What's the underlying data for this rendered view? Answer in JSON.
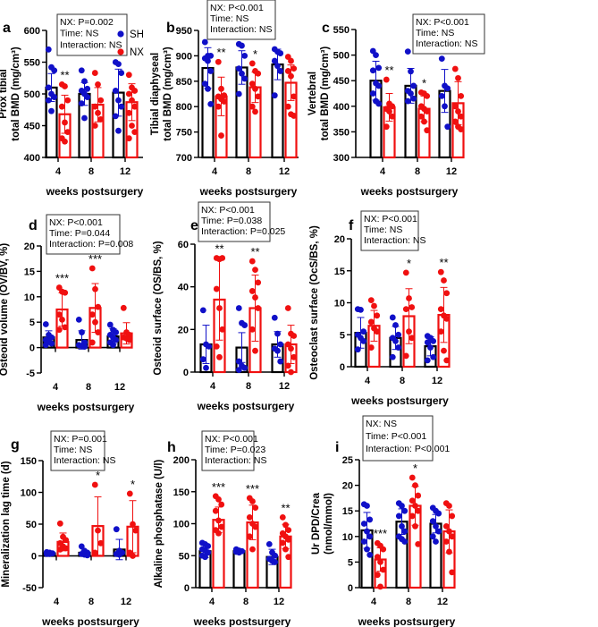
{
  "colors": {
    "SH": "#1010c8",
    "NX": "#f01010",
    "SH_bar_outline": "#000000",
    "NX_bar_outline": "#f01010"
  },
  "legend": [
    {
      "label": "SH",
      "color": "#1010c8"
    },
    {
      "label": "NX",
      "color": "#f01010"
    }
  ],
  "chart_data": [
    {
      "type": "bar",
      "letter": "a",
      "ylabel": [
        "Prox tibial",
        "total BMD (mg/cm³)"
      ],
      "xlabel": "weeks postsurgery",
      "categories": [
        "4",
        "8",
        "12"
      ],
      "ylim": [
        400,
        600
      ],
      "yticks": [
        400,
        450,
        500,
        550,
        600
      ],
      "stats": [
        "NX: P=0.002",
        "Time: NS",
        "Interaction: NS"
      ],
      "series": [
        {
          "name": "SH",
          "mean": [
            510,
            500,
            502
          ],
          "sd": [
            22,
            18,
            37
          ],
          "points": [
            [
              570,
              542,
              537,
              510,
              500,
              495,
              490,
              473
            ],
            [
              537,
              520,
              508,
              505,
              500,
              495,
              485,
              462
            ],
            [
              550,
              547,
              533,
              505,
              490,
              480,
              465,
              442
            ]
          ]
        },
        {
          "name": "NX",
          "mean": [
            468,
            483,
            487
          ],
          "sd": [
            30,
            27,
            29
          ],
          "points": [
            [
              515,
              512,
              490,
              480,
              455,
              440,
              430,
              425
            ],
            [
              533,
              515,
              490,
              480,
              470,
              460,
              450
            ],
            [
              530,
              510,
              505,
              500,
              490,
              480,
              470,
              450,
              440,
              430
            ]
          ]
        }
      ],
      "significance": [
        "**",
        "",
        ""
      ]
    },
    {
      "type": "bar",
      "letter": "b",
      "ylabel": [
        "Tibial diaphyseal",
        "total BMD (mg/cm³)"
      ],
      "xlabel": "weeks postsurgery",
      "categories": [
        "4",
        "8",
        "12"
      ],
      "ylim": [
        700,
        950
      ],
      "yticks": [
        700,
        750,
        800,
        850,
        900,
        950
      ],
      "stats": [
        "NX: P<0.001",
        "Time: NS",
        "Interaction: NS"
      ],
      "series": [
        {
          "name": "SH",
          "mean": [
            876,
            877,
            883
          ],
          "sd": [
            40,
            33,
            30
          ],
          "points": [
            [
              927,
              900,
              900,
              895,
              890,
              870,
              845,
              835,
              805
            ],
            [
              923,
              920,
              900,
              875,
              865,
              855,
              825
            ],
            [
              913,
              908,
              905,
              890,
              880,
              870,
              822
            ]
          ]
        },
        {
          "name": "NX",
          "mean": [
            820,
            838,
            847
          ],
          "sd": [
            38,
            30,
            35
          ],
          "points": [
            [
              888,
              835,
              822,
              820,
              815,
              810,
              800,
              743
            ],
            [
              885,
              870,
              865,
              845,
              835,
              820,
              800,
              790
            ],
            [
              898,
              890,
              875,
              870,
              860,
              820,
              800,
              785,
              782
            ]
          ]
        }
      ],
      "significance": [
        "**",
        "*",
        ""
      ]
    },
    {
      "type": "bar",
      "letter": "c",
      "ylabel": [
        "Vertebral",
        "total BMD (mg/cm³)"
      ],
      "xlabel": "weeks postsurgery",
      "categories": [
        "4",
        "8",
        "12"
      ],
      "ylim": [
        300,
        550
      ],
      "yticks": [
        300,
        350,
        400,
        450,
        500,
        550
      ],
      "stats": [
        "NX: P<0.001",
        "Time: NS",
        "Interaction: NS"
      ],
      "series": [
        {
          "name": "SH",
          "mean": [
            450,
            440,
            430
          ],
          "sd": [
            38,
            34,
            42
          ],
          "points": [
            [
              508,
              500,
              475,
              470,
              445,
              440,
              425,
              410,
              405
            ],
            [
              507,
              468,
              440,
              430,
              425,
              415,
              410
            ],
            [
              493,
              440,
              435,
              420,
              400,
              360
            ]
          ]
        },
        {
          "name": "NX",
          "mean": [
            398,
            395,
            406
          ],
          "sd": [
            27,
            25,
            42
          ],
          "points": [
            [
              452,
              405,
              400,
              395,
              390,
              380,
              360
            ],
            [
              427,
              425,
              420,
              400,
              395,
              390,
              380,
              370,
              353
            ],
            [
              473,
              455,
              420,
              400,
              390,
              380,
              370,
              360,
              355
            ]
          ]
        }
      ],
      "significance": [
        "**",
        "*",
        ""
      ]
    },
    {
      "type": "bar",
      "letter": "d",
      "ylabel": [
        "Osteoid volume (OV/BV, %)"
      ],
      "xlabel": "weeks postsurgery",
      "categories": [
        "4",
        "8",
        "12"
      ],
      "ylim": [
        -5,
        20
      ],
      "yticks": [
        -5,
        0,
        5,
        10,
        15,
        20
      ],
      "stats": [
        "NX: P<0.001",
        "Time: P=0.044",
        "Interaction: P=0.008"
      ],
      "series": [
        {
          "name": "SH",
          "mean": [
            2,
            1.5,
            2.2
          ],
          "sd": [
            1.3,
            1.8,
            1.5
          ],
          "points": [
            [
              4.6,
              2.5,
              2,
              1.5,
              1.2,
              0.8,
              0.5
            ],
            [
              5.5,
              3,
              1,
              0.5,
              0.3,
              0.2
            ],
            [
              4.5,
              3.5,
              3,
              2.5,
              2,
              1.5,
              1,
              0.5
            ]
          ]
        },
        {
          "name": "NX",
          "mean": [
            7.5,
            7.8,
            2.8
          ],
          "sd": [
            3.3,
            4.8,
            2.1
          ],
          "points": [
            [
              11.8,
              11,
              10.8,
              6.5,
              5.5,
              4,
              3.5
            ],
            [
              15.6,
              11.5,
              8,
              6.5,
              5,
              3,
              1
            ],
            [
              7.8,
              3,
              2.5,
              2,
              1.8,
              1.5
            ]
          ]
        }
      ],
      "significance": [
        "***",
        "***",
        ""
      ]
    },
    {
      "type": "bar",
      "letter": "e",
      "ylabel": [
        "Osteoid surface (OS/BS, %)"
      ],
      "xlabel": "weeks postsurgery",
      "categories": [
        "4",
        "8",
        "12"
      ],
      "ylim": [
        0,
        60
      ],
      "yticks": [
        0,
        20,
        40,
        60
      ],
      "stats": [
        "NX: P<0.001",
        "Time: P=0.038",
        "Interaction: P=0.025"
      ],
      "series": [
        {
          "name": "SH",
          "mean": [
            13,
            11.5,
            13
          ],
          "sd": [
            9,
            7,
            6
          ],
          "points": [
            [
              29,
              13,
              12,
              6,
              2
            ],
            [
              30,
              23,
              22,
              5,
              3,
              2,
              1
            ],
            [
              25.5,
              18,
              13,
              11,
              10,
              5
            ]
          ]
        },
        {
          "name": "NX",
          "mean": [
            34,
            30,
            13
          ],
          "sd": [
            19,
            15.5,
            9
          ],
          "points": [
            [
              53.5,
              53,
              53.5,
              39,
              30,
              20,
              12,
              7
            ],
            [
              52,
              48,
              42,
              38,
              35,
              30,
              20,
              10
            ],
            [
              30,
              18,
              17,
              13,
              11,
              7,
              3,
              0
            ]
          ]
        }
      ],
      "significance": [
        "**",
        "**",
        ""
      ]
    },
    {
      "type": "bar",
      "letter": "f",
      "ylabel": [
        "Osteoclast surface (OcS/BS, %)"
      ],
      "xlabel": "weeks postsurgery",
      "categories": [
        "4",
        "8",
        "12"
      ],
      "ylim": [
        0,
        20
      ],
      "yticks": [
        0,
        5,
        10,
        15,
        20
      ],
      "stats": [
        "NX: P<0.001",
        "Time: NS",
        "Interaction: NS"
      ],
      "series": [
        {
          "name": "SH",
          "mean": [
            5.3,
            4.5,
            3.2
          ],
          "sd": [
            2.4,
            1.8,
            1.5
          ],
          "points": [
            [
              9,
              8.9,
              5.5,
              5,
              4.5,
              4,
              2.7
            ],
            [
              7.7,
              6.5,
              5,
              4.5,
              4,
              3,
              1.5
            ],
            [
              4.8,
              4.5,
              4,
              3.8,
              3,
              1.5,
              1
            ]
          ]
        },
        {
          "name": "NX",
          "mean": [
            6.4,
            7.9,
            8.1
          ],
          "sd": [
            2.4,
            4.3,
            4.3
          ],
          "points": [
            [
              10.4,
              9.5,
              8,
              7,
              6,
              5.5,
              3
            ],
            [
              14.7,
              10.7,
              9.3,
              9,
              5.5,
              4.5,
              1.7
            ],
            [
              14.8,
              13.5,
              11.5,
              9,
              8,
              7.5,
              5.5,
              2.5,
              1
            ]
          ]
        }
      ],
      "significance": [
        "",
        "*",
        "**"
      ]
    },
    {
      "type": "bar",
      "letter": "g",
      "ylabel": [
        "Mineralization lag time (d)"
      ],
      "xlabel": "weeks postsurgery",
      "categories": [
        "4",
        "8",
        "12"
      ],
      "ylim": [
        -50,
        150
      ],
      "yticks": [
        -50,
        0,
        50,
        100,
        150
      ],
      "stats": [
        "NX: P=0.001",
        "Time: NS",
        "Interaction: NS"
      ],
      "series": [
        {
          "name": "SH",
          "mean": [
            4,
            5,
            10
          ],
          "sd": [
            2,
            4,
            16
          ],
          "points": [
            [
              6,
              5,
              4,
              3,
              3
            ],
            [
              15,
              8,
              5,
              3,
              2,
              1
            ],
            [
              42,
              8,
              5,
              3,
              2
            ]
          ]
        },
        {
          "name": "NX",
          "mean": [
            22,
            47,
            46
          ],
          "sd": [
            14,
            46,
            41
          ],
          "points": [
            [
              51,
              30,
              25,
              20,
              15,
              12,
              10
            ],
            [
              112,
              40,
              20,
              5
            ],
            [
              98,
              50,
              40,
              5,
              0
            ]
          ]
        }
      ],
      "significance": [
        "",
        "*",
        "*"
      ]
    },
    {
      "type": "bar",
      "letter": "h",
      "ylabel": [
        "Alkaline phosphatase (U/l)"
      ],
      "xlabel": "weeks postsurgery",
      "categories": [
        "4",
        "8",
        "12"
      ],
      "ylim": [
        0,
        200
      ],
      "yticks": [
        0,
        50,
        100,
        150,
        200
      ],
      "stats": [
        "NX: P<0.001",
        "Time: P=0.023",
        "Interaction: NS"
      ],
      "series": [
        {
          "name": "SH",
          "mean": [
            57,
            57,
            48
          ],
          "sd": [
            10,
            2,
            12
          ],
          "points": [
            [
              70,
              68,
              65,
              60,
              58,
              55,
              50,
              48
            ],
            [
              60,
              58,
              57,
              56,
              55
            ],
            [
              68,
              55,
              50,
              45,
              42,
              40
            ]
          ]
        },
        {
          "name": "NX",
          "mean": [
            106,
            102,
            80
          ],
          "sd": [
            20,
            27,
            19
          ],
          "points": [
            [
              143,
              138,
              130,
              120,
              105,
              95,
              90,
              85
            ],
            [
              140,
              135,
              125,
              110,
              100,
              95,
              80,
              60
            ],
            [
              110,
              98,
              90,
              85,
              80,
              75,
              70,
              60,
              48
            ]
          ]
        }
      ],
      "significance": [
        "***",
        "***",
        "**"
      ]
    },
    {
      "type": "bar",
      "letter": "i",
      "ylabel": [
        "Ur DPD/Crea",
        "(nmol/mmol)"
      ],
      "xlabel": "weeks postsurgery",
      "categories": [
        "4",
        "8",
        "12"
      ],
      "ylim": [
        0,
        25
      ],
      "yticks": [
        0,
        5,
        10,
        15,
        20,
        25
      ],
      "stats": [
        "NX: NS",
        "Time: P<0.001",
        "Interaction: P<0.001"
      ],
      "series": [
        {
          "name": "SH",
          "mean": [
            11.2,
            12.9,
            12.5
          ],
          "sd": [
            3.5,
            2.5,
            1.8
          ],
          "points": [
            [
              16.3,
              16,
              13.3,
              12.5,
              11,
              10,
              9,
              7.5,
              6.4
            ],
            [
              16.5,
              16,
              15,
              14,
              12,
              11,
              10,
              9.5,
              9
            ],
            [
              15.6,
              15,
              14.5,
              13,
              12,
              11,
              10,
              9
            ]
          ]
        },
        {
          "name": "NX",
          "mean": [
            5.5,
            16,
            11
          ],
          "sd": [
            2.3,
            3.8,
            4.2
          ],
          "points": [
            [
              8.7,
              8.2,
              7.5,
              6,
              5,
              3.5,
              2.5,
              0.2
            ],
            [
              21.5,
              20,
              18,
              17,
              16,
              15,
              14,
              12,
              8.5
            ],
            [
              16.5,
              16,
              14,
              12,
              11,
              10,
              9,
              7,
              3
            ]
          ]
        }
      ],
      "significance": [
        "***",
        "*",
        ""
      ]
    }
  ]
}
